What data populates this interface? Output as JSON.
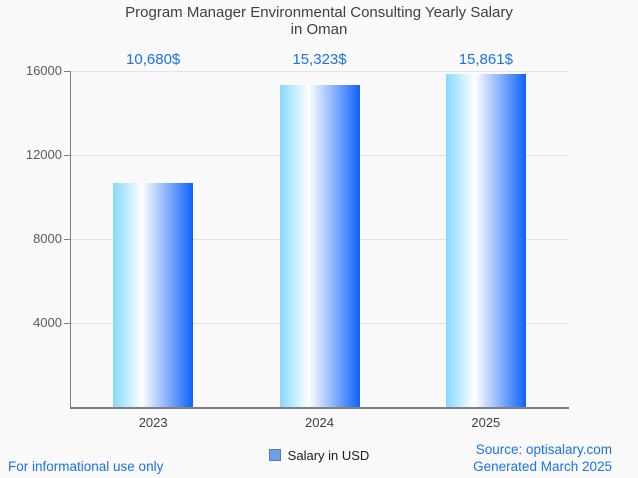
{
  "title": {
    "line1": "Program Manager Environmental Consulting Yearly Salary",
    "line2": "in Oman",
    "full": "Program Manager Environmental Consulting Yearly Salary in Oman"
  },
  "chart_data": {
    "type": "bar",
    "title": "Program Manager Environmental Consulting Yearly Salary in Oman",
    "categories": [
      "2023",
      "2024",
      "2025"
    ],
    "series": [
      {
        "name": "Salary in USD",
        "values": [
          10680,
          15323,
          15861
        ]
      }
    ],
    "value_labels": [
      "10,680$",
      "15,323$",
      "15,861$"
    ],
    "xlabel": "",
    "ylabel": "",
    "ylim": [
      0,
      16000
    ],
    "yticks": [
      4000,
      8000,
      12000,
      16000
    ],
    "grid": true,
    "legend_position": "bottom",
    "bar_gradient": [
      "#86d8fd",
      "#ffffff",
      "#0e63fb"
    ],
    "value_label_color": "#1a73e8"
  },
  "legend": {
    "items": [
      {
        "label": "Salary in USD",
        "marker_color": "#6d9ee8",
        "marker_border": "#4b7cc4"
      }
    ]
  },
  "footer": {
    "left": "For informational use only",
    "source_line": "Source: optisalary.com",
    "generated_line": "Generated March 2025"
  },
  "colors": {
    "background": "#fafafa",
    "gridline": "#e4e4e4",
    "axis": "#808080",
    "ytick_label": "#5c5c5c",
    "category_label": "#404040",
    "title_text": "#3f3f3f",
    "accent_blue": "#1a73e8"
  }
}
